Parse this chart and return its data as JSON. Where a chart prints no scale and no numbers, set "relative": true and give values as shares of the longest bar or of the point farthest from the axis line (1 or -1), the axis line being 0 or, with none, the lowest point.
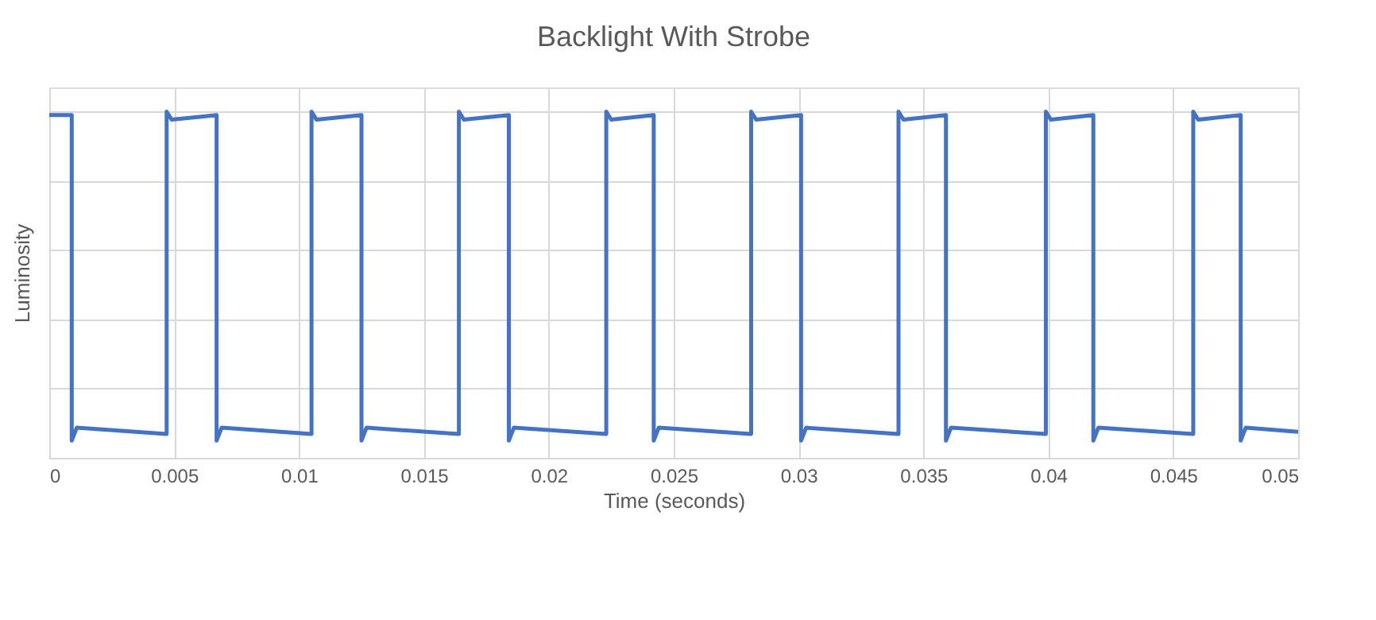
{
  "chart_data": {
    "type": "line",
    "title": "Backlight With Strobe",
    "xlabel": "Time (seconds)",
    "ylabel": "Luminosity",
    "relative": true,
    "grid": true,
    "legend": false,
    "marker": "none",
    "line_style": "solid",
    "xlim": [
      0,
      0.05
    ],
    "xticks": [
      0,
      0.005,
      0.01,
      0.015,
      0.02,
      0.025,
      0.03,
      0.035,
      0.04,
      0.045,
      0.05
    ],
    "series": [
      {
        "color": "#4472c4",
        "x": [
          0,
          0.0009,
          0.0009,
          0.0011,
          0.0047,
          0.0047,
          0.0049,
          0.0067,
          0.0067,
          0.0069,
          0.0105,
          0.0105,
          0.0107,
          0.0125,
          0.0125,
          0.0127,
          0.0164,
          0.0164,
          0.0166,
          0.0184,
          0.0184,
          0.0186,
          0.0223,
          0.0223,
          0.0225,
          0.0242,
          0.0242,
          0.0244,
          0.0281,
          0.0281,
          0.0283,
          0.0301,
          0.0301,
          0.0303,
          0.034,
          0.034,
          0.0342,
          0.0359,
          0.0359,
          0.0361,
          0.0399,
          0.0399,
          0.0401,
          0.0418,
          0.0418,
          0.042,
          0.0458,
          0.0458,
          0.046,
          0.0477,
          0.0477,
          0.0479,
          0.05
        ],
        "values": [
          0.99,
          0.99,
          0.05,
          0.087,
          0.069,
          1,
          0.977,
          0.99,
          0.05,
          0.087,
          0.069,
          1,
          0.977,
          0.99,
          0.05,
          0.087,
          0.069,
          1,
          0.977,
          0.99,
          0.05,
          0.087,
          0.069,
          1,
          0.977,
          0.99,
          0.05,
          0.087,
          0.069,
          1,
          0.977,
          0.99,
          0.05,
          0.087,
          0.069,
          1,
          0.977,
          0.99,
          0.05,
          0.087,
          0.069,
          1,
          0.977,
          0.99,
          0.05,
          0.087,
          0.069,
          1,
          0.977,
          0.99,
          0.05,
          0.087,
          0.075
        ]
      }
    ]
  }
}
